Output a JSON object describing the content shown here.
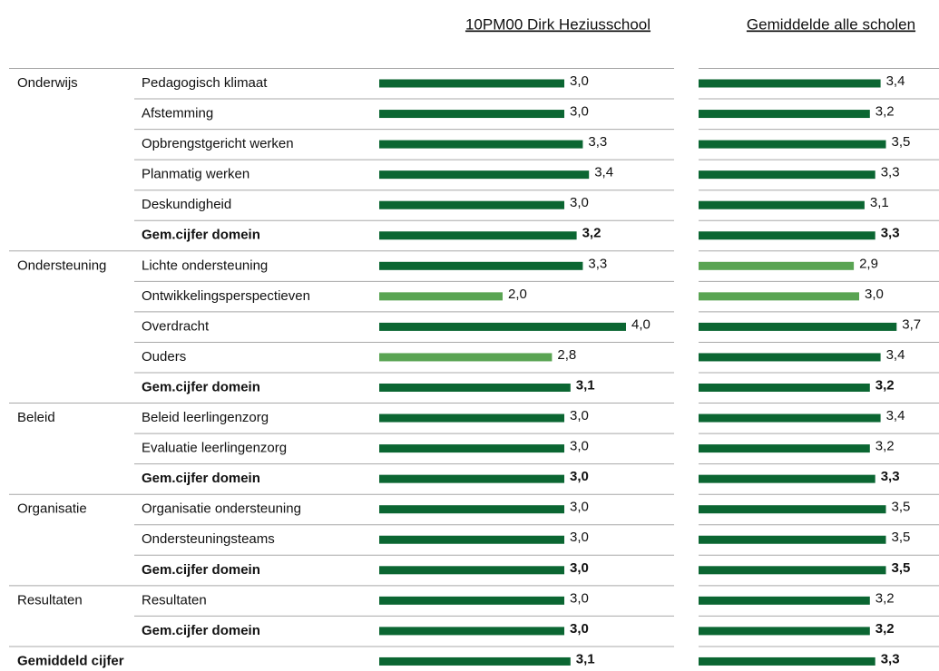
{
  "columns": {
    "school": "10PM00 Dirk Heziusschool",
    "average": "Gemiddelde alle scholen"
  },
  "rows": [
    {
      "domain": "Onderwijs",
      "label": "Pedagogisch klimaat",
      "bold": false,
      "school": 3.0,
      "school_label": "3,0",
      "school_color": "#0b6632",
      "average": 3.4,
      "average_label": "3,4",
      "average_color": "#0b6632"
    },
    {
      "label": "Afstemming",
      "bold": false,
      "school": 3.0,
      "school_label": "3,0",
      "school_color": "#0b6632",
      "average": 3.2,
      "average_label": "3,2",
      "average_color": "#0b6632"
    },
    {
      "label": "Opbrengstgericht werken",
      "bold": false,
      "school": 3.3,
      "school_label": "3,3",
      "school_color": "#0b6632",
      "average": 3.5,
      "average_label": "3,5",
      "average_color": "#0b6632"
    },
    {
      "label": "Planmatig werken",
      "bold": false,
      "school": 3.4,
      "school_label": "3,4",
      "school_color": "#0b6632",
      "average": 3.3,
      "average_label": "3,3",
      "average_color": "#0b6632"
    },
    {
      "label": "Deskundigheid",
      "bold": false,
      "school": 3.0,
      "school_label": "3,0",
      "school_color": "#0b6632",
      "average": 3.1,
      "average_label": "3,1",
      "average_color": "#0b6632"
    },
    {
      "label": "Gem.cijfer domein",
      "bold": true,
      "school": 3.2,
      "school_label": "3,2",
      "school_color": "#0b6632",
      "average": 3.3,
      "average_label": "3,3",
      "average_color": "#0b6632"
    },
    {
      "domain": "Ondersteuning",
      "label": "Lichte ondersteuning",
      "bold": false,
      "school": 3.3,
      "school_label": "3,3",
      "school_color": "#0b6632",
      "average": 2.9,
      "average_label": "2,9",
      "average_color": "#5aa453"
    },
    {
      "label": "Ontwikkelingsperspectieven",
      "bold": false,
      "school": 2.0,
      "school_label": "2,0",
      "school_color": "#5aa453",
      "average": 3.0,
      "average_label": "3,0",
      "average_color": "#5aa453"
    },
    {
      "label": "Overdracht",
      "bold": false,
      "school": 4.0,
      "school_label": "4,0",
      "school_color": "#0b6632",
      "average": 3.7,
      "average_label": "3,7",
      "average_color": "#0b6632"
    },
    {
      "label": "Ouders",
      "bold": false,
      "school": 2.8,
      "school_label": "2,8",
      "school_color": "#5aa453",
      "average": 3.4,
      "average_label": "3,4",
      "average_color": "#0b6632"
    },
    {
      "label": "Gem.cijfer domein",
      "bold": true,
      "school": 3.1,
      "school_label": "3,1",
      "school_color": "#0b6632",
      "average": 3.2,
      "average_label": "3,2",
      "average_color": "#0b6632"
    },
    {
      "domain": "Beleid",
      "label": "Beleid leerlingenzorg",
      "bold": false,
      "school": 3.0,
      "school_label": "3,0",
      "school_color": "#0b6632",
      "average": 3.4,
      "average_label": "3,4",
      "average_color": "#0b6632"
    },
    {
      "label": "Evaluatie leerlingenzorg",
      "bold": false,
      "school": 3.0,
      "school_label": "3,0",
      "school_color": "#0b6632",
      "average": 3.2,
      "average_label": "3,2",
      "average_color": "#0b6632"
    },
    {
      "label": "Gem.cijfer domein",
      "bold": true,
      "school": 3.0,
      "school_label": "3,0",
      "school_color": "#0b6632",
      "average": 3.3,
      "average_label": "3,3",
      "average_color": "#0b6632"
    },
    {
      "domain": "Organisatie",
      "label": "Organisatie ondersteuning",
      "bold": false,
      "school": 3.0,
      "school_label": "3,0",
      "school_color": "#0b6632",
      "average": 3.5,
      "average_label": "3,5",
      "average_color": "#0b6632"
    },
    {
      "label": "Ondersteuningsteams",
      "bold": false,
      "school": 3.0,
      "school_label": "3,0",
      "school_color": "#0b6632",
      "average": 3.5,
      "average_label": "3,5",
      "average_color": "#0b6632"
    },
    {
      "label": "Gem.cijfer domein",
      "bold": true,
      "school": 3.0,
      "school_label": "3,0",
      "school_color": "#0b6632",
      "average": 3.5,
      "average_label": "3,5",
      "average_color": "#0b6632"
    },
    {
      "domain": "Resultaten",
      "label": "Resultaten",
      "bold": false,
      "school": 3.0,
      "school_label": "3,0",
      "school_color": "#0b6632",
      "average": 3.2,
      "average_label": "3,2",
      "average_color": "#0b6632"
    },
    {
      "label": "Gem.cijfer domein",
      "bold": true,
      "school": 3.0,
      "school_label": "3,0",
      "school_color": "#0b6632",
      "average": 3.2,
      "average_label": "3,2",
      "average_color": "#0b6632"
    },
    {
      "domain": "Gemiddeld cijfer",
      "bold": true,
      "school": 3.1,
      "school_label": "3,1",
      "school_color": "#0b6632",
      "average": 3.3,
      "average_label": "3,3",
      "average_color": "#0b6632"
    }
  ]
}
